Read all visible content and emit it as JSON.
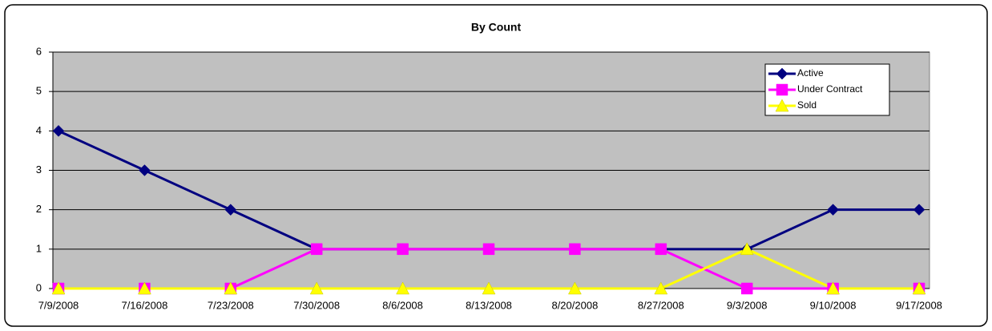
{
  "chart_data": {
    "type": "line",
    "title": "By Count",
    "categories": [
      "7/9/2008",
      "7/16/2008",
      "7/23/2008",
      "7/30/2008",
      "8/6/2008",
      "8/13/2008",
      "8/20/2008",
      "8/27/2008",
      "9/3/2008",
      "9/10/2008",
      "9/17/2008"
    ],
    "series": [
      {
        "name": "Active",
        "color": "#000080",
        "marker": "diamond",
        "values": [
          4,
          3,
          2,
          1,
          1,
          1,
          1,
          1,
          1,
          2,
          2
        ]
      },
      {
        "name": "Under Contract",
        "color": "#ff00ff",
        "marker": "square",
        "values": [
          0,
          0,
          0,
          1,
          1,
          1,
          1,
          1,
          0,
          0,
          0
        ]
      },
      {
        "name": "Sold",
        "color": "#ffff00",
        "marker": "triangle",
        "values": [
          0,
          0,
          0,
          0,
          0,
          0,
          0,
          0,
          1,
          0,
          0
        ]
      }
    ],
    "ylim": [
      0,
      6
    ],
    "yticks": [
      0,
      1,
      2,
      3,
      4,
      5,
      6
    ],
    "grid": true,
    "legend": "upper right"
  }
}
